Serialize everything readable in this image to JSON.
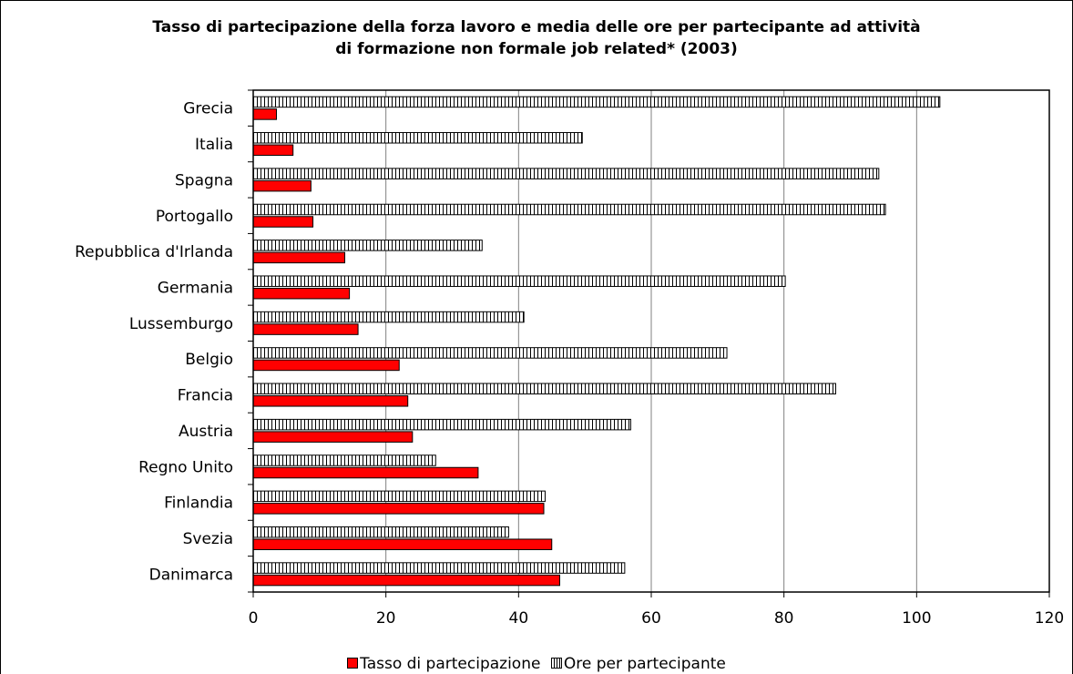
{
  "chart_data": {
    "type": "bar",
    "orientation": "horizontal",
    "title_line1": "Tasso di partecipazione della forza lavoro e media delle ore per partecipante ad attività",
    "title_line2": "di formazione non formale job related* (2003)",
    "categories": [
      "Grecia",
      "Italia",
      "Spagna",
      "Portogallo",
      "Repubblica d'Irlanda",
      "Germania",
      "Lussemburgo",
      "Belgio",
      "Francia",
      "Austria",
      "Regno Unito",
      "Finlandia",
      "Svezia",
      "Danimarca"
    ],
    "series": [
      {
        "name": "Tasso di partecipazione",
        "color": "#ff0000",
        "values": [
          3.5,
          6,
          8.7,
          9,
          13.8,
          14.5,
          15.8,
          22,
          23.3,
          24,
          33.9,
          43.8,
          45,
          46.2
        ]
      },
      {
        "name": "Ore per partecipante",
        "color": "#ffffff",
        "pattern": "vertical-hatch",
        "values": [
          103.5,
          49.6,
          94.3,
          95.3,
          34.5,
          80.2,
          40.8,
          71.4,
          87.8,
          56.9,
          27.5,
          44,
          38.5,
          56
        ]
      }
    ],
    "xlim": [
      0,
      120
    ],
    "xticks": [
      "0",
      "20",
      "40",
      "60",
      "80",
      "100",
      "120"
    ],
    "grid": "vertical",
    "legend_position": "bottom"
  }
}
